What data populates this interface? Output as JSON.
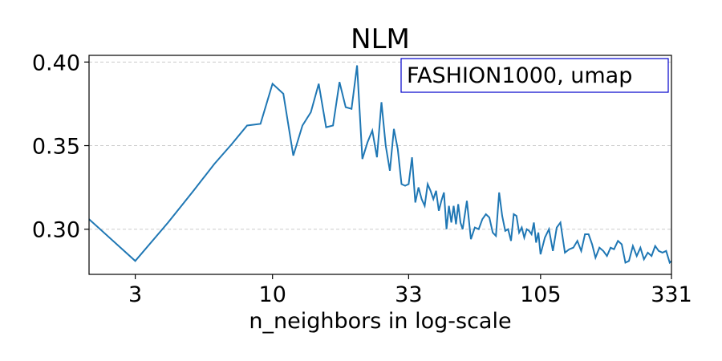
{
  "chart_data": {
    "type": "line",
    "title": "NLM",
    "xlabel": "n_neighbors in log-scale",
    "ylabel": "",
    "x_scale": "log",
    "xlim": [
      2,
      331
    ],
    "ylim": [
      0.273,
      0.404
    ],
    "x_ticks": [
      3,
      10,
      33,
      105,
      331
    ],
    "x_tick_labels": [
      "3",
      "10",
      "33",
      "105",
      "331"
    ],
    "y_ticks": [
      0.3,
      0.35,
      0.4
    ],
    "y_tick_labels": [
      "0.30",
      "0.35",
      "0.40"
    ],
    "grid": "horizontal dashed",
    "annotation": "FASHION1000, umap",
    "annotation_position": "top-right",
    "line_color": "#1f77b4",
    "series": [
      {
        "x": [
          2,
          3,
          4,
          5,
          6,
          7,
          8,
          9,
          10,
          11,
          12,
          13,
          14,
          15,
          16,
          17,
          18,
          19,
          20,
          21,
          22,
          23,
          24,
          25,
          26,
          27,
          28,
          29,
          30,
          31,
          32,
          33,
          34,
          35,
          36,
          37,
          38,
          39,
          40,
          41,
          42,
          43,
          44,
          45,
          46,
          47,
          48,
          49,
          50,
          51,
          52,
          53,
          55,
          57,
          59,
          61,
          63,
          65,
          67,
          69,
          71,
          73,
          75,
          77,
          79,
          81,
          83,
          85,
          87,
          89,
          91,
          93,
          95,
          97,
          99,
          101,
          103,
          105,
          109,
          113,
          117,
          121,
          125,
          130,
          135,
          140,
          145,
          150,
          155,
          160,
          165,
          170,
          176,
          182,
          188,
          194,
          200,
          207,
          214,
          221,
          228,
          236,
          244,
          252,
          260,
          269,
          278,
          287,
          296,
          306,
          316,
          326,
          331
        ],
        "y": [
          0.306,
          0.281,
          0.304,
          0.323,
          0.339,
          0.351,
          0.362,
          0.363,
          0.387,
          0.381,
          0.344,
          0.362,
          0.37,
          0.387,
          0.361,
          0.362,
          0.388,
          0.373,
          0.372,
          0.398,
          0.342,
          0.352,
          0.359,
          0.343,
          0.376,
          0.35,
          0.335,
          0.36,
          0.348,
          0.327,
          0.326,
          0.327,
          0.343,
          0.316,
          0.325,
          0.318,
          0.314,
          0.327,
          0.323,
          0.318,
          0.323,
          0.311,
          0.317,
          0.322,
          0.3,
          0.314,
          0.304,
          0.314,
          0.303,
          0.315,
          0.304,
          0.3,
          0.317,
          0.294,
          0.301,
          0.3,
          0.306,
          0.309,
          0.307,
          0.298,
          0.296,
          0.322,
          0.308,
          0.299,
          0.3,
          0.293,
          0.309,
          0.308,
          0.298,
          0.301,
          0.295,
          0.3,
          0.299,
          0.297,
          0.304,
          0.292,
          0.298,
          0.285,
          0.295,
          0.3,
          0.287,
          0.301,
          0.304,
          0.286,
          0.288,
          0.289,
          0.293,
          0.287,
          0.297,
          0.297,
          0.291,
          0.283,
          0.289,
          0.287,
          0.284,
          0.289,
          0.288,
          0.293,
          0.291,
          0.28,
          0.281,
          0.29,
          0.284,
          0.289,
          0.282,
          0.286,
          0.284,
          0.29,
          0.287,
          0.286,
          0.287,
          0.28,
          0.281
        ]
      }
    ]
  }
}
